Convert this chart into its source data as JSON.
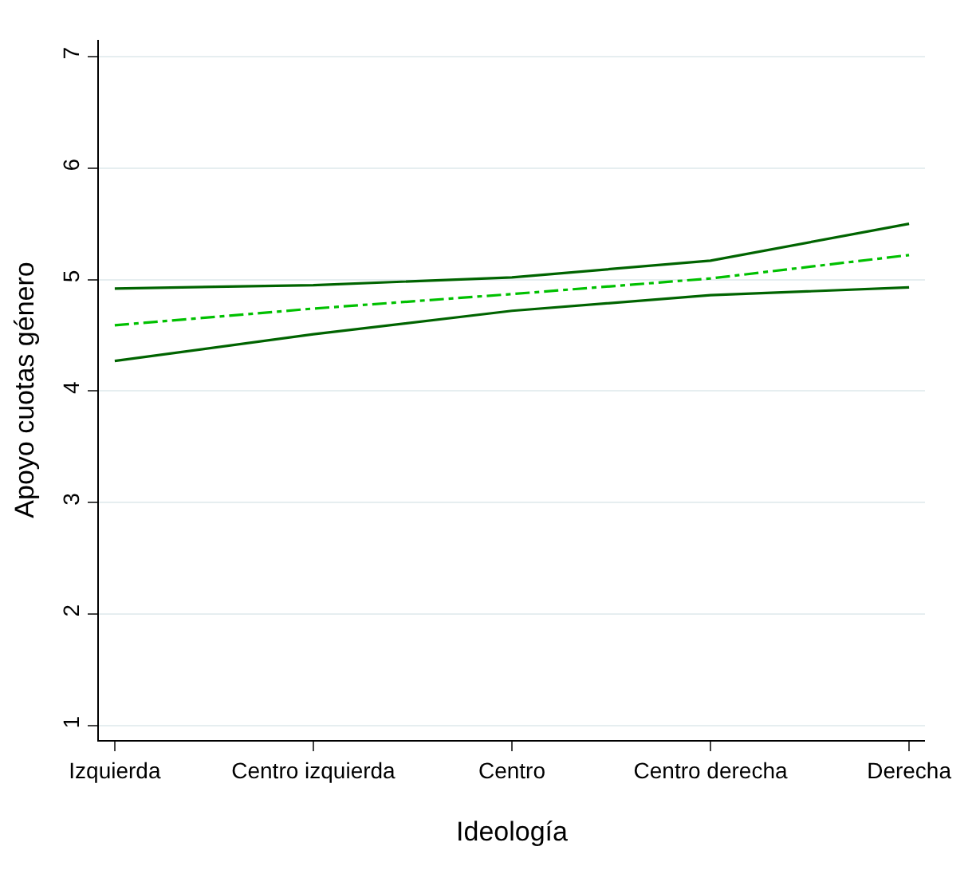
{
  "chart_data": {
    "type": "line",
    "xlabel": "Ideología",
    "ylabel": "Apoyo cuotas género",
    "categories": [
      "Izquierda",
      "Centro izquierda",
      "Centro",
      "Centro derecha",
      "Derecha"
    ],
    "series": [
      {
        "color": "#006400",
        "values": [
          4.92,
          4.95,
          5.02,
          5.17,
          5.5
        ],
        "line_style": "solid"
      },
      {
        "color": "#00c000",
        "values": [
          4.59,
          4.74,
          4.87,
          5.01,
          5.22
        ],
        "line_style": "dashed"
      },
      {
        "color": "#006400",
        "values": [
          4.27,
          4.51,
          4.72,
          4.86,
          4.93
        ],
        "line_style": "solid"
      }
    ],
    "ylim": [
      0.87,
      7.15
    ],
    "yticks": [
      1,
      2,
      3,
      4,
      5,
      6,
      7
    ],
    "grid": "y"
  }
}
